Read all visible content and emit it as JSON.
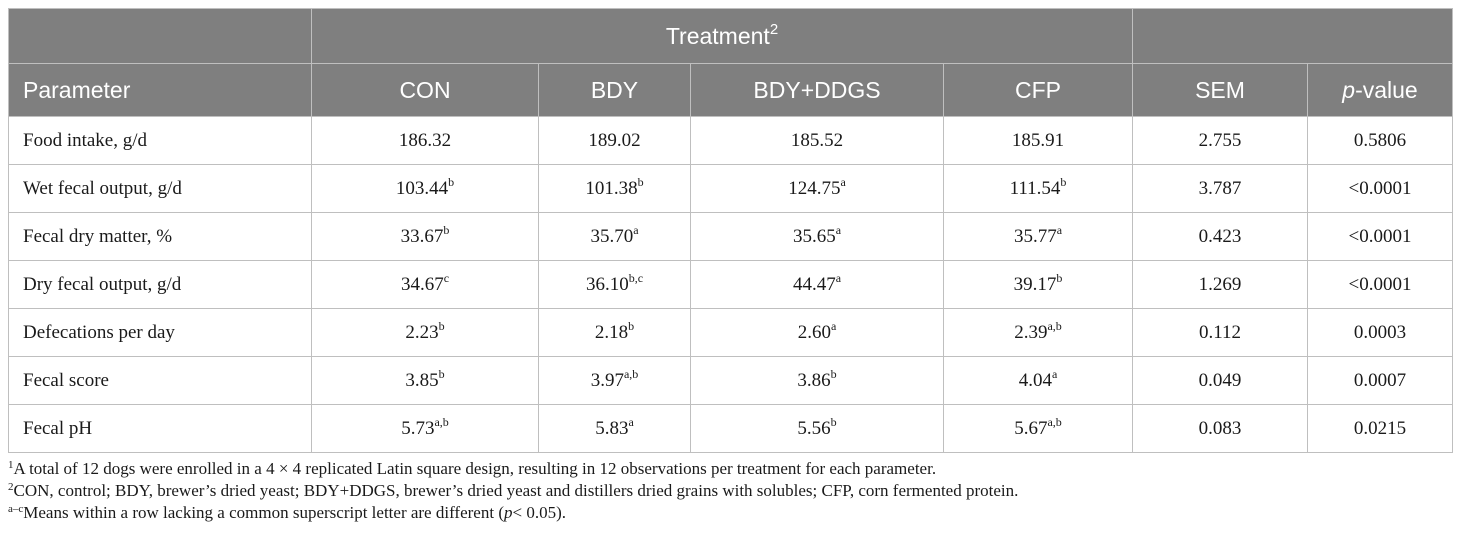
{
  "header": {
    "treatment_label": "Treatment",
    "treatment_sup": "2",
    "parameter": "Parameter",
    "treatments": [
      "CON",
      "BDY",
      "BDY+DDGS",
      "CFP"
    ],
    "sem": "SEM",
    "pvalue_italic": "p",
    "pvalue_rest": "-value"
  },
  "rows": [
    {
      "label": "Food intake, g/d",
      "cells": [
        {
          "v": "186.32",
          "s": ""
        },
        {
          "v": "189.02",
          "s": ""
        },
        {
          "v": "185.52",
          "s": ""
        },
        {
          "v": "185.91",
          "s": ""
        }
      ],
      "sem": "2.755",
      "p": "0.5806"
    },
    {
      "label": "Wet fecal output, g/d",
      "cells": [
        {
          "v": "103.44",
          "s": "b"
        },
        {
          "v": "101.38",
          "s": "b"
        },
        {
          "v": "124.75",
          "s": "a"
        },
        {
          "v": "111.54",
          "s": "b"
        }
      ],
      "sem": "3.787",
      "p": "<0.0001"
    },
    {
      "label": "Fecal dry matter, %",
      "cells": [
        {
          "v": "33.67",
          "s": "b"
        },
        {
          "v": "35.70",
          "s": "a"
        },
        {
          "v": "35.65",
          "s": "a"
        },
        {
          "v": "35.77",
          "s": "a"
        }
      ],
      "sem": "0.423",
      "p": "<0.0001"
    },
    {
      "label": "Dry fecal output, g/d",
      "cells": [
        {
          "v": "34.67",
          "s": "c"
        },
        {
          "v": "36.10",
          "s": "b,c"
        },
        {
          "v": "44.47",
          "s": "a"
        },
        {
          "v": "39.17",
          "s": "b"
        }
      ],
      "sem": "1.269",
      "p": "<0.0001"
    },
    {
      "label": "Defecations per day",
      "cells": [
        {
          "v": "2.23",
          "s": "b"
        },
        {
          "v": "2.18",
          "s": "b"
        },
        {
          "v": "2.60",
          "s": "a"
        },
        {
          "v": "2.39",
          "s": "a,b"
        }
      ],
      "sem": "0.112",
      "p": "0.0003"
    },
    {
      "label": "Fecal score",
      "cells": [
        {
          "v": "3.85",
          "s": "b"
        },
        {
          "v": "3.97",
          "s": "a,b"
        },
        {
          "v": "3.86",
          "s": "b"
        },
        {
          "v": "4.04",
          "s": "a"
        }
      ],
      "sem": "0.049",
      "p": "0.0007"
    },
    {
      "label": "Fecal pH",
      "cells": [
        {
          "v": "5.73",
          "s": "a,b"
        },
        {
          "v": "5.83",
          "s": "a"
        },
        {
          "v": "5.56",
          "s": "b"
        },
        {
          "v": "5.67",
          "s": "a,b"
        }
      ],
      "sem": "0.083",
      "p": "0.0215"
    }
  ],
  "footnotes": {
    "n1_mark": "1",
    "n1_text": "A total of 12 dogs were enrolled in a 4 × 4 replicated Latin square design, resulting in 12 observations per treatment for each parameter.",
    "n2_mark": "2",
    "n2_text": "CON, control; BDY, brewer’s dried yeast; BDY+DDGS, brewer’s dried yeast and distillers dried grains with solubles; CFP, corn fermented protein.",
    "n3_mark": "a–c",
    "n3_text_before": "Means within a row lacking a common superscript letter are different (",
    "n3_text_italic": "p",
    "n3_text_after": "< 0.05)."
  }
}
